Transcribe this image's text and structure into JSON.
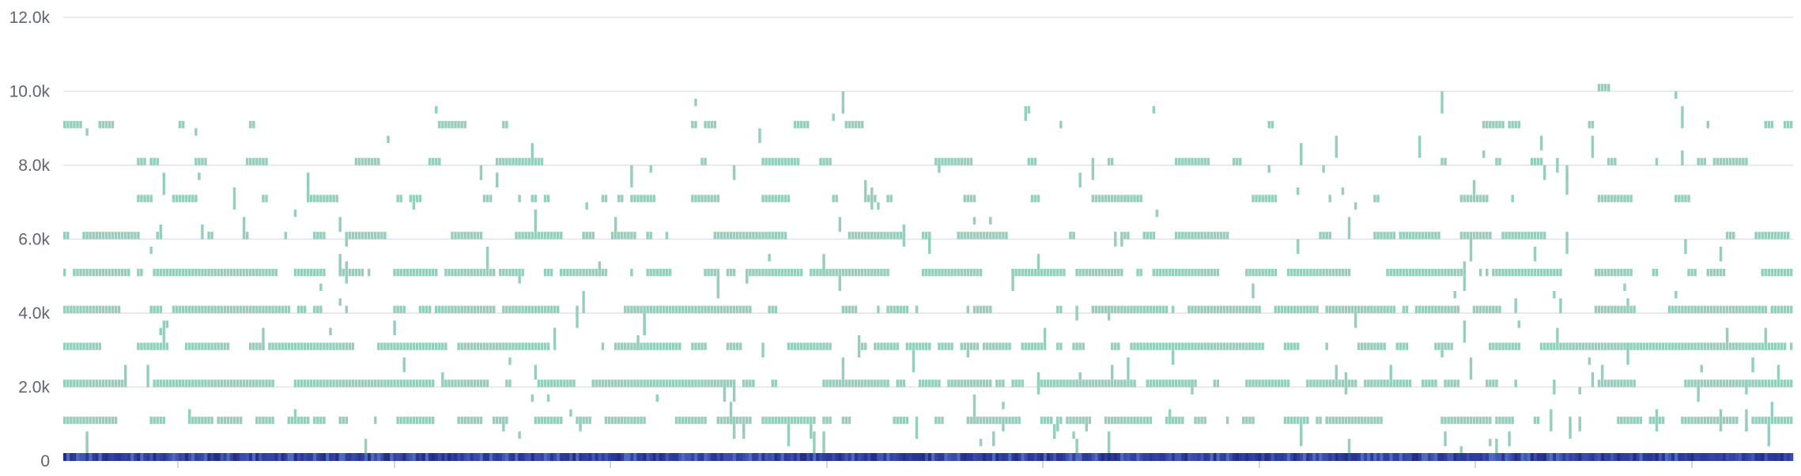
{
  "chart_data": {
    "type": "heatmap",
    "title": "",
    "xlabel": "",
    "ylabel": "",
    "y_ticks": [
      "0",
      "2.0k",
      "4.0k",
      "6.0k",
      "8.0k",
      "10.0k",
      "12.0k"
    ],
    "y_tick_values": [
      0,
      2000,
      4000,
      6000,
      8000,
      10000,
      12000
    ],
    "ylim": [
      0,
      12000
    ],
    "grid": true,
    "legend": "none",
    "bucket_size": 200,
    "bucket_colors": {
      "sparse": "#95cfbc",
      "dense_bottom": "#2f3f9c"
    },
    "num_time_columns": 540,
    "rows": [
      {
        "bucket": 0,
        "density": 1.0,
        "band": "dense"
      },
      {
        "bucket": 1000,
        "density": 0.55
      },
      {
        "bucket": 2000,
        "density": 0.72
      },
      {
        "bucket": 3000,
        "density": 0.72
      },
      {
        "bucket": 4000,
        "density": 0.6
      },
      {
        "bucket": 5000,
        "density": 0.55
      },
      {
        "bucket": 6000,
        "density": 0.5
      },
      {
        "bucket": 7000,
        "density": 0.35
      },
      {
        "bucket": 8000,
        "density": 0.25
      },
      {
        "bucket": 9000,
        "density": 0.12
      },
      {
        "bucket": 10000,
        "density": 0.01
      }
    ],
    "scatter_density": 0.035
  }
}
